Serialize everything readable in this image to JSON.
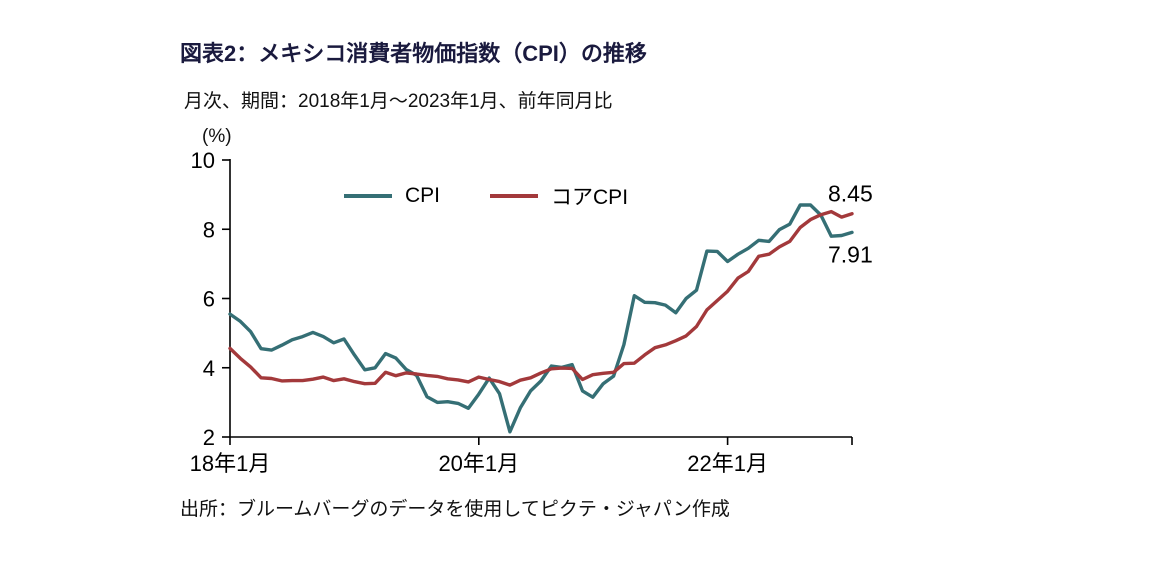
{
  "chart_data": {
    "type": "line",
    "title": "図表2：メキシコ消費者物価指数（CPI）の推移",
    "subtitle": "月次、期間：2018年1月～2023年1月、前年同月比",
    "unit_label": "(%)",
    "source": "出所：ブルームバーグのデータを使用してピクテ・ジャパン作成",
    "ylim": [
      2,
      10
    ],
    "y_ticks": [
      2,
      4,
      6,
      8,
      10
    ],
    "x_months_total": 60,
    "x_ticks": [
      {
        "month": 0,
        "label": "18年1月"
      },
      {
        "month": 24,
        "label": "20年1月"
      },
      {
        "month": 48,
        "label": "22年1月"
      }
    ],
    "legend_position": "top-inside",
    "grid": false,
    "series": [
      {
        "name": "CPI",
        "color": "#356f75",
        "end_label": "7.91",
        "label_position": "below",
        "values": [
          5.55,
          5.34,
          5.04,
          4.55,
          4.51,
          4.65,
          4.81,
          4.9,
          5.02,
          4.9,
          4.72,
          4.83,
          4.37,
          3.94,
          4.0,
          4.41,
          4.28,
          3.95,
          3.78,
          3.16,
          3.0,
          3.02,
          2.97,
          2.83,
          3.24,
          3.7,
          3.25,
          2.15,
          2.84,
          3.33,
          3.62,
          4.05,
          4.01,
          4.09,
          3.33,
          3.15,
          3.54,
          3.76,
          4.67,
          6.08,
          5.89,
          5.88,
          5.81,
          5.59,
          6.0,
          6.24,
          7.37,
          7.36,
          7.07,
          7.28,
          7.45,
          7.68,
          7.65,
          7.99,
          8.15,
          8.7,
          8.7,
          8.41,
          7.8,
          7.82,
          7.91
        ]
      },
      {
        "name": "コアCPI",
        "color": "#a3393b",
        "end_label": "8.45",
        "label_position": "above",
        "values": [
          4.56,
          4.27,
          4.02,
          3.71,
          3.69,
          3.62,
          3.63,
          3.63,
          3.67,
          3.73,
          3.63,
          3.68,
          3.6,
          3.54,
          3.55,
          3.87,
          3.77,
          3.85,
          3.82,
          3.78,
          3.75,
          3.68,
          3.65,
          3.59,
          3.73,
          3.66,
          3.6,
          3.5,
          3.64,
          3.71,
          3.85,
          3.97,
          3.99,
          3.98,
          3.66,
          3.8,
          3.84,
          3.87,
          4.12,
          4.13,
          4.37,
          4.58,
          4.66,
          4.78,
          4.92,
          5.19,
          5.67,
          5.94,
          6.21,
          6.59,
          6.78,
          7.22,
          7.28,
          7.49,
          7.65,
          8.05,
          8.28,
          8.42,
          8.51,
          8.35,
          8.45
        ]
      }
    ]
  }
}
